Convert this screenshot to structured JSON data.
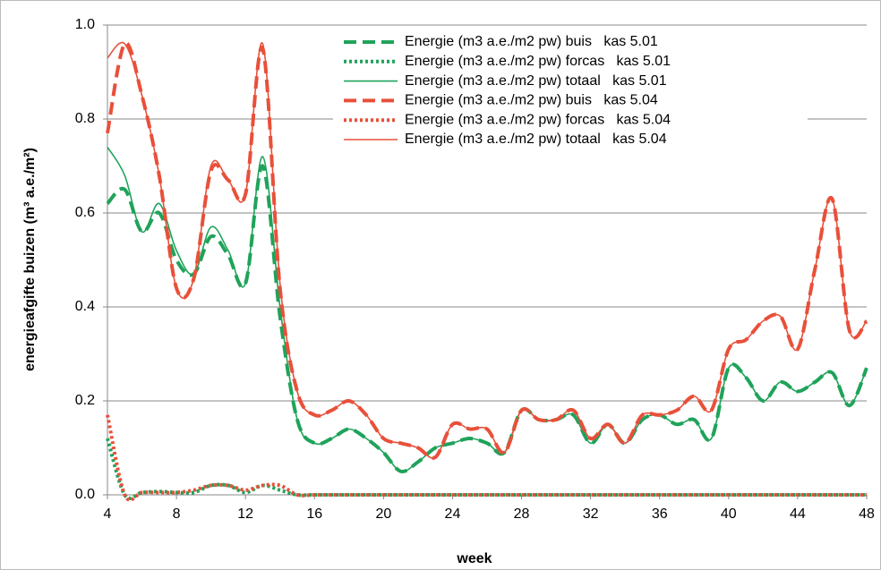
{
  "chart_data": {
    "type": "line",
    "x_label": "week",
    "y_label": "energieafgifte  buizen (m³ a.e./m²)",
    "x": [
      4,
      5,
      6,
      7,
      8,
      9,
      10,
      11,
      12,
      13,
      14,
      15,
      16,
      17,
      18,
      19,
      20,
      21,
      22,
      23,
      24,
      25,
      26,
      27,
      28,
      29,
      30,
      31,
      32,
      33,
      34,
      35,
      36,
      37,
      38,
      39,
      40,
      41,
      42,
      43,
      44,
      45,
      46,
      47,
      48
    ],
    "xlim": [
      4,
      48
    ],
    "xticks": [
      4,
      8,
      12,
      16,
      20,
      24,
      28,
      32,
      36,
      40,
      44,
      48
    ],
    "ylim": [
      0,
      1
    ],
    "yticks": [
      {
        "value": 0,
        "label": "0.0"
      },
      {
        "value": 0.2,
        "label": "0.2"
      },
      {
        "value": 0.4,
        "label": "0.4"
      },
      {
        "value": 0.6,
        "label": "0.6"
      },
      {
        "value": 0.8,
        "label": "0.8"
      },
      {
        "value": 1,
        "label": "1.0"
      }
    ],
    "grid": true,
    "legend": "top-right",
    "series": [
      {
        "name": "Energie (m3 a.e./m2 pw) buis   kas 5.01",
        "color": "#1fa35a",
        "style": "dashed",
        "values": [
          0.62,
          0.65,
          0.56,
          0.6,
          0.5,
          0.47,
          0.55,
          0.51,
          0.45,
          0.7,
          0.38,
          0.16,
          0.11,
          0.12,
          0.14,
          0.12,
          0.09,
          0.05,
          0.07,
          0.1,
          0.11,
          0.12,
          0.11,
          0.09,
          0.18,
          0.16,
          0.16,
          0.17,
          0.11,
          0.15,
          0.11,
          0.16,
          0.17,
          0.15,
          0.16,
          0.12,
          0.27,
          0.25,
          0.2,
          0.24,
          0.22,
          0.24,
          0.26,
          0.19,
          0.27
        ]
      },
      {
        "name": "Energie (m3 a.e./m2 pw) forcas   kas 5.01",
        "color": "#1fa35a",
        "style": "dotted",
        "values": [
          0.12,
          0,
          0.005,
          0.007,
          0.005,
          0.005,
          0.02,
          0.02,
          0.005,
          0.02,
          0.01,
          0,
          0,
          0,
          0,
          0,
          0,
          0,
          0,
          0,
          0,
          0,
          0,
          0,
          0,
          0,
          0,
          0,
          0,
          0,
          0,
          0,
          0,
          0,
          0,
          0,
          0,
          0,
          0,
          0,
          0,
          0,
          0,
          0,
          0
        ]
      },
      {
        "name": "Energie (m3 a.e./m2 pw) totaal   kas 5.01",
        "color": "#1fa35a",
        "style": "solid",
        "values": [
          0.74,
          0.68,
          0.56,
          0.62,
          0.52,
          0.47,
          0.57,
          0.52,
          0.45,
          0.72,
          0.4,
          0.16,
          0.11,
          0.12,
          0.14,
          0.12,
          0.09,
          0.05,
          0.07,
          0.1,
          0.11,
          0.12,
          0.11,
          0.09,
          0.18,
          0.16,
          0.16,
          0.17,
          0.11,
          0.15,
          0.11,
          0.16,
          0.17,
          0.15,
          0.16,
          0.12,
          0.27,
          0.25,
          0.2,
          0.24,
          0.22,
          0.24,
          0.26,
          0.19,
          0.27
        ]
      },
      {
        "name": "Energie (m3 a.e./m2 pw) buis   kas 5.04",
        "color": "#e8503a",
        "style": "dashed",
        "values": [
          0.77,
          0.96,
          0.85,
          0.68,
          0.44,
          0.46,
          0.69,
          0.67,
          0.64,
          0.95,
          0.44,
          0.22,
          0.17,
          0.18,
          0.2,
          0.17,
          0.12,
          0.11,
          0.1,
          0.08,
          0.15,
          0.14,
          0.14,
          0.09,
          0.18,
          0.16,
          0.16,
          0.18,
          0.12,
          0.15,
          0.11,
          0.17,
          0.17,
          0.18,
          0.21,
          0.18,
          0.31,
          0.33,
          0.37,
          0.38,
          0.31,
          0.48,
          0.63,
          0.35,
          0.37
        ]
      },
      {
        "name": "Energie (m3 a.e./m2 pw) forcas   kas 5.04",
        "color": "#e8503a",
        "style": "dotted",
        "values": [
          0.17,
          0,
          0.005,
          0.005,
          0.005,
          0.01,
          0.02,
          0.02,
          0.01,
          0.02,
          0.02,
          0,
          0,
          0,
          0,
          0,
          0,
          0,
          0,
          0,
          0,
          0,
          0,
          0,
          0,
          0,
          0,
          0,
          0,
          0,
          0,
          0,
          0,
          0,
          0,
          0,
          0,
          0,
          0,
          0,
          0,
          0,
          0,
          0,
          0
        ]
      },
      {
        "name": "Energie (m3 a.e./m2 pw) totaal   kas 5.04",
        "color": "#e8503a",
        "style": "solid",
        "values": [
          0.93,
          0.96,
          0.85,
          0.68,
          0.44,
          0.46,
          0.7,
          0.67,
          0.64,
          0.96,
          0.45,
          0.22,
          0.17,
          0.18,
          0.2,
          0.17,
          0.12,
          0.11,
          0.1,
          0.08,
          0.15,
          0.14,
          0.14,
          0.09,
          0.18,
          0.16,
          0.16,
          0.18,
          0.12,
          0.15,
          0.11,
          0.17,
          0.17,
          0.18,
          0.21,
          0.18,
          0.31,
          0.33,
          0.37,
          0.38,
          0.31,
          0.48,
          0.63,
          0.35,
          0.37
        ]
      }
    ]
  }
}
